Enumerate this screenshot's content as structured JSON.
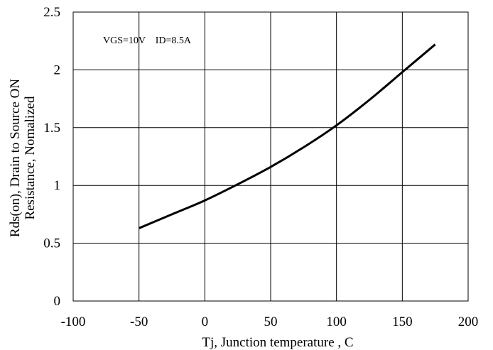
{
  "chart_data": {
    "type": "line",
    "title": "",
    "xlabel": "Tj, Junction temperature , C",
    "ylabel_lines": [
      "Rds(on), Drain to Source ON",
      "Resistance, Nomalized"
    ],
    "annotation": "VGS=10V    ID=8.5A",
    "xlim": [
      -100,
      200
    ],
    "ylim": [
      0,
      2.5
    ],
    "grid": true,
    "x_ticks": [
      {
        "value": -100,
        "label": "-100"
      },
      {
        "value": -50,
        "label": "-50"
      },
      {
        "value": 0,
        "label": "0"
      },
      {
        "value": 50,
        "label": "50"
      },
      {
        "value": 100,
        "label": "100"
      },
      {
        "value": 150,
        "label": "150"
      },
      {
        "value": 200,
        "label": "200"
      }
    ],
    "y_ticks": [
      {
        "value": 0,
        "label": "0"
      },
      {
        "value": 0.5,
        "label": "0.5"
      },
      {
        "value": 1,
        "label": "1"
      },
      {
        "value": 1.5,
        "label": "1.5"
      },
      {
        "value": 2,
        "label": "2"
      },
      {
        "value": 2.5,
        "label": "2.5"
      }
    ],
    "series": [
      {
        "x": [
          -50,
          -25,
          0,
          25,
          50,
          75,
          100,
          125,
          150,
          175
        ],
        "y": [
          0.63,
          0.75,
          0.87,
          1.01,
          1.16,
          1.33,
          1.52,
          1.74,
          1.98,
          2.22
        ]
      }
    ]
  }
}
